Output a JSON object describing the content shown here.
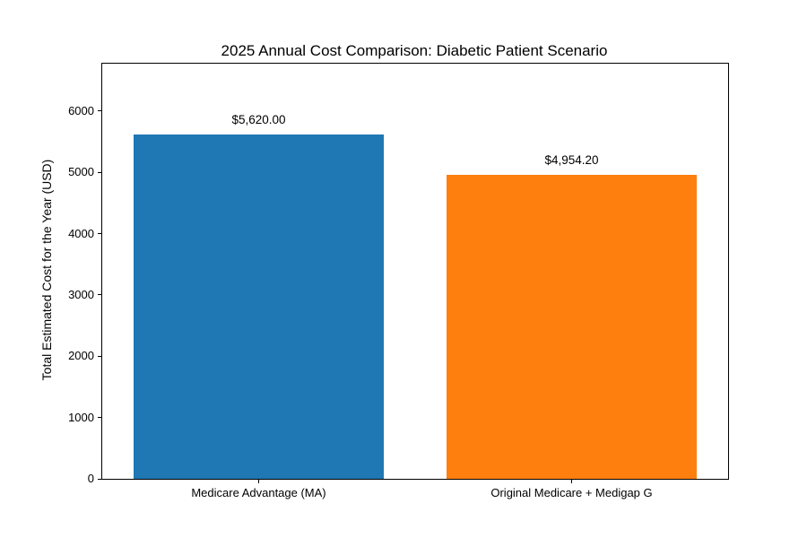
{
  "chart_data": {
    "type": "bar",
    "title": "2025 Annual Cost Comparison: Diabetic Patient Scenario",
    "xlabel": "",
    "ylabel": "Total Estimated Cost for the Year (USD)",
    "categories": [
      "Medicare Advantage (MA)",
      "Original Medicare + Medigap G"
    ],
    "values": [
      5620.0,
      4954.2
    ],
    "value_labels": [
      "$5,620.00",
      "$4,954.20"
    ],
    "bar_colors": [
      "#1f77b4",
      "#ff7f0e"
    ],
    "yticks": [
      0,
      1000,
      2000,
      3000,
      4000,
      5000,
      6000
    ],
    "ylim": [
      0,
      6775
    ],
    "grid": false,
    "legend_position": "none",
    "background_color": "#ffffff",
    "text_color": "#000000"
  }
}
